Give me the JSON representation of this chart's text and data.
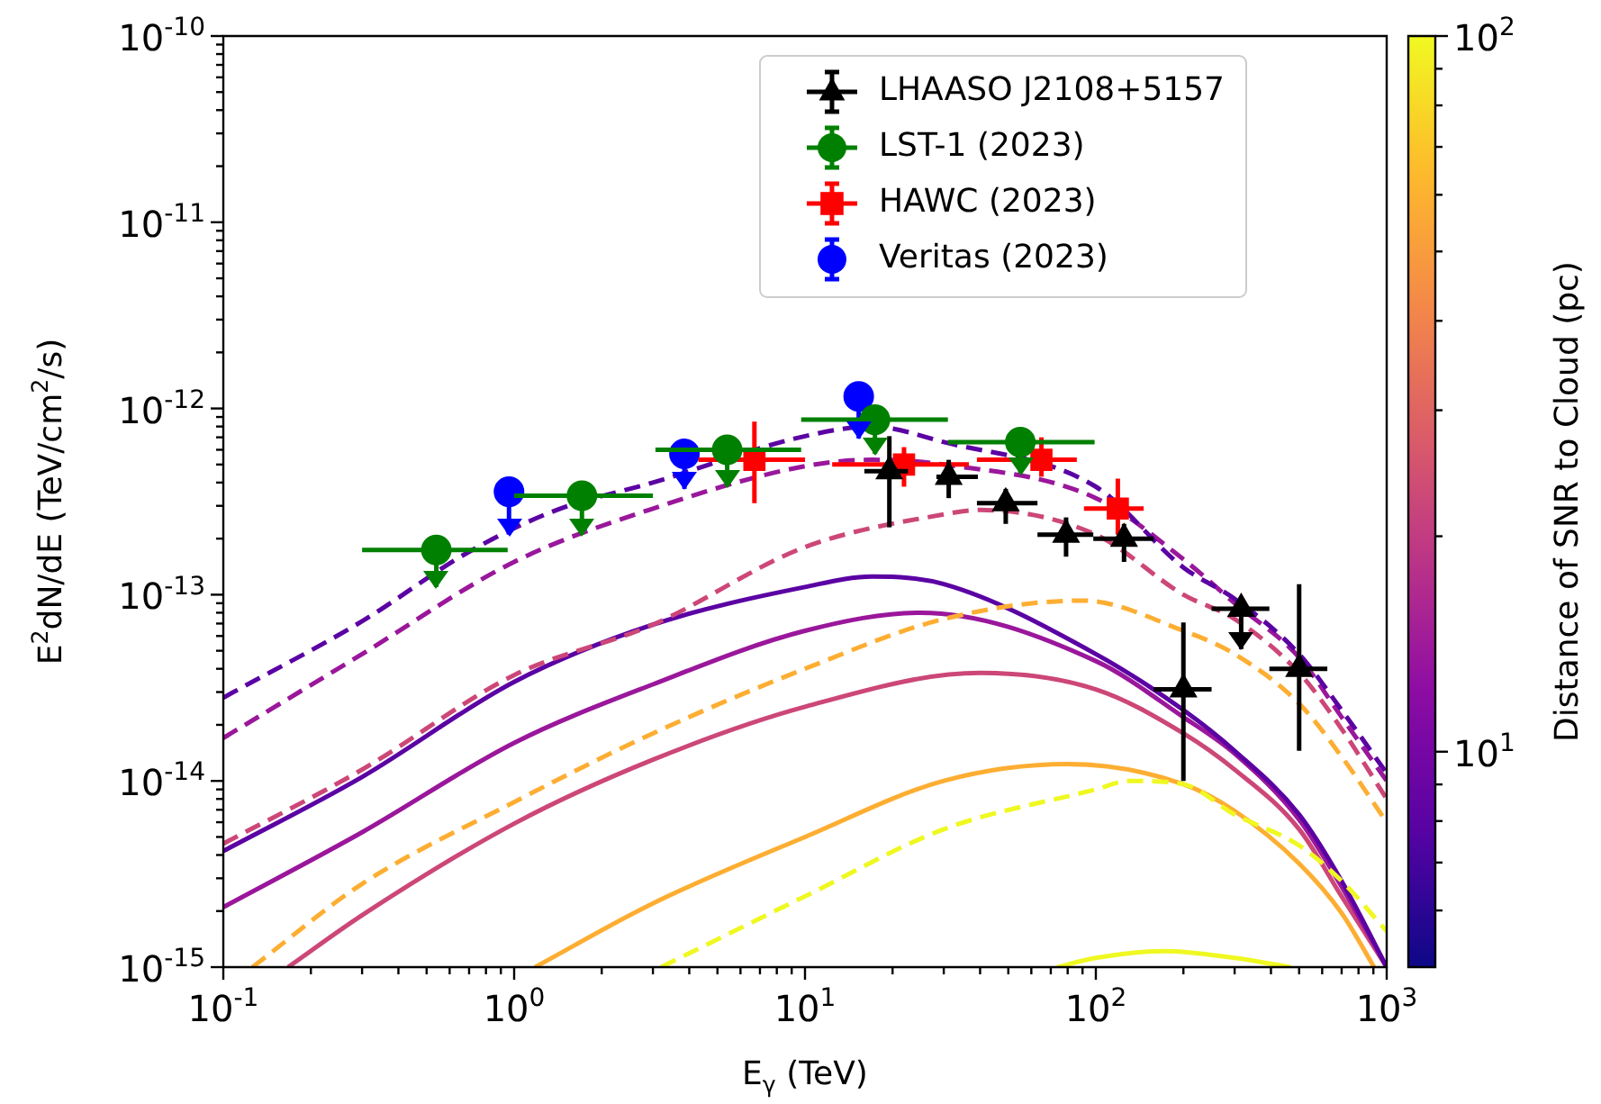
{
  "chart_data": {
    "type": "line",
    "xlabel": "E$_{γ}$ (TeV)",
    "ylabel": "E$^{2}$dN/dE (TeV/cm$^{2}$/s)",
    "clabel": "Distance of SNR to Cloud (pc)",
    "log": "xy",
    "legend": "top right",
    "xlim": [
      0.1,
      1000
    ],
    "ylim": [
      1e-15,
      1e-10
    ],
    "xticks": [
      {
        "value": 0.1,
        "label": "10$^{-1}$"
      },
      {
        "value": 0.2,
        "label": null
      },
      {
        "value": 0.3,
        "label": null
      },
      {
        "value": 0.4,
        "label": null
      },
      {
        "value": 0.5,
        "label": null
      },
      {
        "value": 0.6,
        "label": null
      },
      {
        "value": 0.7,
        "label": null
      },
      {
        "value": 0.8,
        "label": null
      },
      {
        "value": 0.9,
        "label": null
      },
      {
        "value": 1,
        "label": "10$^{0}$"
      },
      {
        "value": 2,
        "label": null
      },
      {
        "value": 3,
        "label": null
      },
      {
        "value": 4,
        "label": null
      },
      {
        "value": 5,
        "label": null
      },
      {
        "value": 6,
        "label": null
      },
      {
        "value": 7,
        "label": null
      },
      {
        "value": 8,
        "label": null
      },
      {
        "value": 9,
        "label": null
      },
      {
        "value": 10,
        "label": "10$^{1}$"
      },
      {
        "value": 20,
        "label": null
      },
      {
        "value": 30,
        "label": null
      },
      {
        "value": 40,
        "label": null
      },
      {
        "value": 50,
        "label": null
      },
      {
        "value": 60,
        "label": null
      },
      {
        "value": 70,
        "label": null
      },
      {
        "value": 80,
        "label": null
      },
      {
        "value": 90,
        "label": null
      },
      {
        "value": 100,
        "label": "10$^{2}$"
      },
      {
        "value": 200,
        "label": null
      },
      {
        "value": 300,
        "label": null
      },
      {
        "value": 400,
        "label": null
      },
      {
        "value": 500,
        "label": null
      },
      {
        "value": 600,
        "label": null
      },
      {
        "value": 700,
        "label": null
      },
      {
        "value": 800,
        "label": null
      },
      {
        "value": 900,
        "label": null
      },
      {
        "value": 1000,
        "label": "10$^{3}$"
      }
    ],
    "yticks": [
      {
        "value": 1e-15,
        "label": "10$^{-15}$"
      },
      {
        "value": 2e-15,
        "label": null
      },
      {
        "value": 3e-15,
        "label": null
      },
      {
        "value": 4e-15,
        "label": null
      },
      {
        "value": 5e-15,
        "label": null
      },
      {
        "value": 6e-15,
        "label": null
      },
      {
        "value": 7e-15,
        "label": null
      },
      {
        "value": 8e-15,
        "label": null
      },
      {
        "value": 9e-15,
        "label": null
      },
      {
        "value": 1e-14,
        "label": "10$^{-14}$"
      },
      {
        "value": 2e-14,
        "label": null
      },
      {
        "value": 3e-14,
        "label": null
      },
      {
        "value": 4e-14,
        "label": null
      },
      {
        "value": 5e-14,
        "label": null
      },
      {
        "value": 6e-14,
        "label": null
      },
      {
        "value": 7e-14,
        "label": null
      },
      {
        "value": 8e-14,
        "label": null
      },
      {
        "value": 9e-14,
        "label": null
      },
      {
        "value": 1e-13,
        "label": "10$^{-13}$"
      },
      {
        "value": 2e-13,
        "label": null
      },
      {
        "value": 3e-13,
        "label": null
      },
      {
        "value": 4e-13,
        "label": null
      },
      {
        "value": 5e-13,
        "label": null
      },
      {
        "value": 6e-13,
        "label": null
      },
      {
        "value": 7e-13,
        "label": null
      },
      {
        "value": 8e-13,
        "label": null
      },
      {
        "value": 9e-13,
        "label": null
      },
      {
        "value": 1e-12,
        "label": "10$^{-12}$"
      },
      {
        "value": 2e-12,
        "label": null
      },
      {
        "value": 3e-12,
        "label": null
      },
      {
        "value": 4e-12,
        "label": null
      },
      {
        "value": 5e-12,
        "label": null
      },
      {
        "value": 6e-12,
        "label": null
      },
      {
        "value": 7e-12,
        "label": null
      },
      {
        "value": 8e-12,
        "label": null
      },
      {
        "value": 9e-12,
        "label": null
      },
      {
        "value": 1e-11,
        "label": "10$^{-11}$"
      },
      {
        "value": 2e-11,
        "label": null
      },
      {
        "value": 3e-11,
        "label": null
      },
      {
        "value": 4e-11,
        "label": null
      },
      {
        "value": 5e-11,
        "label": null
      },
      {
        "value": 6e-11,
        "label": null
      },
      {
        "value": 7e-11,
        "label": null
      },
      {
        "value": 8e-11,
        "label": null
      },
      {
        "value": 9e-11,
        "label": null
      },
      {
        "value": 1e-10,
        "label": "10$^{-10}$"
      }
    ],
    "clim": [
      5,
      100
    ],
    "cticks": [
      {
        "value": 10,
        "label": "10$^{1}$"
      },
      {
        "value": 100,
        "label": "10$^{2}$"
      }
    ],
    "series": [
      {
        "type": "scatter",
        "name": "LHAASO J2108+5157",
        "color": "#000000",
        "marker": "triangle",
        "x": [
          19.5,
          31.2,
          49,
          79,
          125,
          200,
          316,
          500
        ],
        "values": [
          4.6e-13,
          4.3e-13,
          3.1e-13,
          2.1e-13,
          2e-13,
          3.1e-14,
          8.4e-14,
          4e-14
        ],
        "errors": [
          [
            2.3e-13,
            7.1e-13
          ],
          [
            3.3e-13,
            5.3e-13
          ],
          [
            2.4e-13,
            3.7e-13
          ],
          [
            1.6e-13,
            2.6e-13
          ],
          [
            1.5e-13,
            2.4e-13
          ],
          [
            1e-14,
            7.1e-14
          ],
          [
            5.1e-14,
            8.4e-14
          ],
          [
            1.45e-14,
            1.14e-13
          ]
        ],
        "xerrors": [
          [
            16,
            22.6
          ],
          [
            28.3,
            39.3
          ],
          [
            39,
            63
          ],
          [
            63,
            98
          ],
          [
            98,
            158
          ],
          [
            158,
            250
          ],
          [
            250,
            395
          ],
          [
            395,
            625
          ]
        ]
      },
      {
        "type": "scatter",
        "name": "LST-1 (2023)",
        "color": "#008000",
        "marker": "circle",
        "x": [
          0.54,
          1.71,
          5.4,
          17.4,
          55
        ],
        "values": [
          1.74e-13,
          3.4e-13,
          6e-13,
          8.7e-13,
          6.6e-13
        ],
        "errors": [
          [
            1.1e-13,
            1.74e-13
          ],
          [
            2.1e-13,
            3.4e-13
          ],
          [
            3.8e-13,
            6e-13
          ],
          [
            5.7e-13,
            8.7e-13
          ],
          [
            4.5e-13,
            6.6e-13
          ]
        ],
        "xerrors": [
          [
            0.3,
            0.95
          ],
          [
            1.0,
            3.0
          ],
          [
            3.06,
            9.7
          ],
          [
            9.7,
            31
          ],
          [
            31,
            99
          ]
        ]
      },
      {
        "type": "scatter",
        "name": "HAWC (2023)",
        "color": "#ff0000",
        "marker": "square",
        "x": [
          6.7,
          21.9,
          65,
          119
        ],
        "values": [
          5.3e-13,
          5e-13,
          5.3e-13,
          2.9e-13
        ],
        "errors": [
          [
            3.1e-13,
            8.5e-13
          ],
          [
            3.8e-13,
            6.2e-13
          ],
          [
            4.3e-13,
            7e-13
          ],
          [
            2.1e-13,
            4.2e-13
          ]
        ],
        "xerrors": [
          [
            4.3,
            10
          ],
          [
            12.4,
            36.6
          ],
          [
            39,
            86
          ],
          [
            91,
            146
          ]
        ]
      },
      {
        "type": "scatter",
        "name": "Veritas (2023)",
        "color": "#0000ff",
        "marker": "circle",
        "x": [
          0.96,
          3.85,
          15.3
        ],
        "values": [
          3.57e-13,
          5.7e-13,
          1.16e-12
        ],
        "errors": [
          [
            2.1e-13,
            3.57e-13
          ],
          [
            3.7e-13,
            5.7e-13
          ],
          [
            6.9e-13,
            1.16e-12
          ]
        ]
      },
      {
        "color": "#5b02a3",
        "line_style": "dashed",
        "x": [
          0.1,
          0.3,
          0.7,
          1.4,
          3,
          10,
          17,
          30,
          100,
          200,
          300,
          500,
          700,
          1000
        ],
        "values": [
          2.8e-14,
          7.2e-14,
          1.7e-13,
          2.85e-13,
          4e-13,
          7.1e-13,
          8e-13,
          6.6e-13,
          3.8e-13,
          1.4e-13,
          9.5e-14,
          4.8e-14,
          2.4e-14,
          1.1e-14
        ]
      },
      {
        "color": "#9a179b",
        "line_style": "dashed",
        "x": [
          0.1,
          0.3,
          1,
          3,
          10,
          17,
          30,
          100,
          200,
          300,
          500,
          700,
          1000
        ],
        "values": [
          1.7e-14,
          4.8e-14,
          1.5e-13,
          2.9e-13,
          4.9e-13,
          5.3e-13,
          5e-13,
          3.3e-13,
          1.55e-13,
          9e-14,
          4.6e-14,
          2.2e-14,
          1e-14
        ]
      },
      {
        "color": "#cc4778",
        "line_style": "dashed",
        "x": [
          0.1,
          0.3,
          1,
          3,
          10,
          30,
          40,
          100,
          200,
          300,
          500,
          700,
          1000
        ],
        "values": [
          4.6e-15,
          1.15e-14,
          3.7e-14,
          6.9e-14,
          1.8e-13,
          2.7e-13,
          2.85e-13,
          2.1e-13,
          1e-13,
          7.4e-14,
          3.8e-14,
          1.9e-14,
          8e-15
        ]
      },
      {
        "color": "#fdae32",
        "line_style": "dashed",
        "x": [
          0.126,
          0.3,
          1,
          3,
          10,
          30,
          90,
          200,
          300,
          500,
          700,
          1000
        ],
        "values": [
          1e-15,
          2.8e-15,
          7.7e-15,
          1.8e-14,
          4e-14,
          7.4e-14,
          9.3e-14,
          6.4e-14,
          4.8e-14,
          2.6e-14,
          1.35e-14,
          6e-15
        ]
      },
      {
        "color": "#eff821",
        "line_style": "dashed",
        "x": [
          3.2,
          10,
          30,
          100,
          130,
          200,
          300,
          500,
          700,
          1000
        ],
        "values": [
          1e-15,
          2.4e-15,
          5.5e-15,
          9e-15,
          1e-14,
          9.6e-15,
          6.6e-15,
          4.5e-15,
          2.9e-15,
          1.56e-15
        ]
      },
      {
        "color": "#5b02a3",
        "line_style": "solid",
        "x": [
          0.1,
          0.3,
          1,
          3,
          10,
          17,
          30,
          100,
          200,
          300,
          500,
          700,
          1000
        ],
        "values": [
          4.2e-15,
          1.05e-14,
          3.4e-14,
          6.9e-14,
          1.1e-13,
          1.25e-13,
          1.14e-13,
          4.8e-14,
          2.4e-14,
          1.45e-14,
          6.6e-15,
          2.9e-15,
          1e-15
        ]
      },
      {
        "color": "#9a179b",
        "line_style": "solid",
        "x": [
          0.1,
          0.3,
          1,
          3,
          10,
          25,
          100,
          200,
          300,
          500,
          700,
          1000
        ],
        "values": [
          2.1e-15,
          5.3e-15,
          1.6e-14,
          3.3e-14,
          6.4e-14,
          8e-14,
          4.4e-14,
          2.2e-14,
          1.4e-14,
          6.2e-15,
          2.7e-15,
          1e-15
        ]
      },
      {
        "color": "#cc4778",
        "line_style": "solid",
        "x": [
          0.167,
          0.3,
          1,
          3,
          10,
          40,
          100,
          200,
          300,
          500,
          700,
          1000
        ],
        "values": [
          1e-15,
          1.9e-15,
          5.9e-15,
          1.3e-14,
          2.5e-14,
          3.8e-14,
          3.1e-14,
          1.8e-14,
          1.15e-14,
          5.5e-15,
          2.4e-15,
          1e-15
        ]
      },
      {
        "color": "#fdae32",
        "line_style": "solid",
        "x": [
          1.18,
          3,
          10,
          30,
          80,
          200,
          300,
          500,
          700,
          905
        ],
        "values": [
          1e-15,
          2.2e-15,
          5e-15,
          1e-14,
          1.23e-14,
          9.6e-15,
          6.9e-15,
          3.6e-15,
          1.95e-15,
          1e-15
        ]
      },
      {
        "color": "#eff821",
        "line_style": "solid",
        "x": [
          73.6,
          100,
          173,
          300,
          467
        ],
        "values": [
          1e-15,
          1.12e-15,
          1.22e-15,
          1.12e-15,
          1e-15
        ]
      }
    ]
  }
}
